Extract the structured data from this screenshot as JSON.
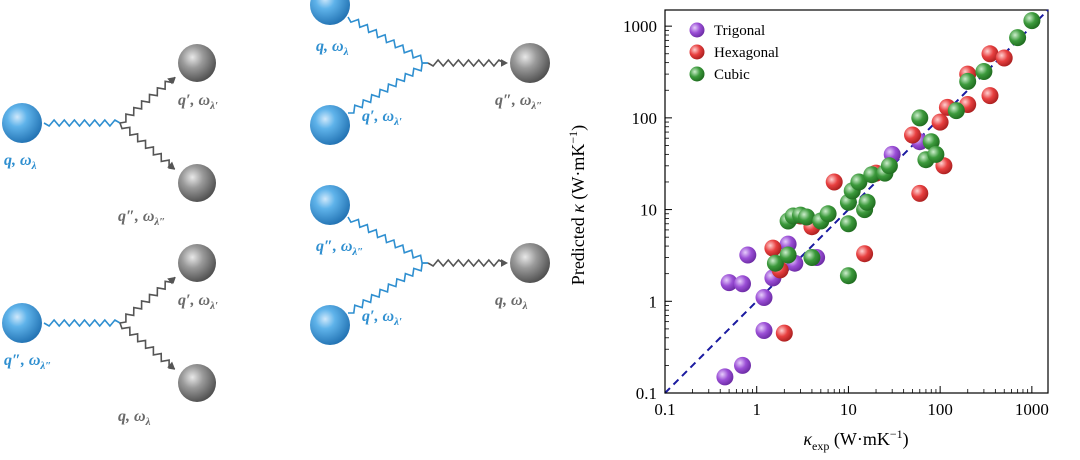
{
  "diagrams": [
    {
      "id": "split-top-left",
      "in": {
        "q": "q",
        "w": "ω",
        "sub": "λ",
        "color": "blue"
      },
      "out1": {
        "q": "q′",
        "w": "ω",
        "sub": "λ′",
        "color": "gray"
      },
      "out2": {
        "q": "q″",
        "w": "ω",
        "sub": "λ″",
        "color": "gray"
      }
    },
    {
      "id": "merge-top-right",
      "in1": {
        "q": "q",
        "w": "ω",
        "sub": "λ",
        "color": "blue"
      },
      "in2": {
        "q": "q′",
        "w": "ω",
        "sub": "λ′",
        "color": "blue"
      },
      "out": {
        "q": "q″",
        "w": "ω",
        "sub": "λ″",
        "color": "gray"
      }
    },
    {
      "id": "split-bottom-left",
      "in": {
        "q": "q″",
        "w": "ω",
        "sub": "λ″",
        "color": "blue"
      },
      "out1": {
        "q": "q′",
        "w": "ω",
        "sub": "λ′",
        "color": "gray"
      },
      "out2": {
        "q": "q",
        "w": "ω",
        "sub": "λ",
        "color": "gray"
      }
    },
    {
      "id": "merge-bottom-right",
      "in1": {
        "q": "q″",
        "w": "ω",
        "sub": "λ″",
        "color": "blue"
      },
      "in2": {
        "q": "q′",
        "w": "ω",
        "sub": "λ′",
        "color": "blue"
      },
      "out": {
        "q": "q",
        "w": "ω",
        "sub": "λ",
        "color": "gray"
      }
    }
  ],
  "chart_data": {
    "type": "scatter",
    "xscale": "log",
    "yscale": "log",
    "xlim": [
      0.1,
      1500
    ],
    "ylim": [
      0.1,
      1500
    ],
    "xticks": [
      "0.1",
      "1",
      "10",
      "100",
      "1000"
    ],
    "yticks": [
      "0.1",
      "1",
      "10",
      "100",
      "1000"
    ],
    "xlabel": {
      "main": "κ",
      "sub": "exp",
      "unit": " (W·mK",
      "sup": "−1",
      "close": ")"
    },
    "ylabel": {
      "main": "Predicted ",
      "kappa": "κ",
      "unit": " (W·mK",
      "sup": "−1",
      "close": ")"
    },
    "legend_position": "top-left",
    "reference_line": "y = x (dashed)",
    "series": [
      {
        "name": "Trigonal",
        "color": "#9b4fd6",
        "points": [
          [
            0.45,
            0.15
          ],
          [
            0.7,
            0.2
          ],
          [
            0.5,
            1.6
          ],
          [
            0.7,
            1.55
          ],
          [
            0.8,
            3.2
          ],
          [
            1.2,
            1.1
          ],
          [
            1.2,
            0.48
          ],
          [
            1.5,
            1.8
          ],
          [
            2.2,
            4.2
          ],
          [
            2.6,
            2.6
          ],
          [
            4.5,
            3.0
          ],
          [
            30,
            40
          ],
          [
            60,
            55
          ]
        ]
      },
      {
        "name": "Hexagonal",
        "color": "#e84040",
        "points": [
          [
            1.5,
            3.8
          ],
          [
            1.8,
            2.2
          ],
          [
            2.0,
            0.45
          ],
          [
            3.0,
            8.5
          ],
          [
            4.0,
            6.5
          ],
          [
            7.0,
            20
          ],
          [
            15,
            3.3
          ],
          [
            20,
            25
          ],
          [
            50,
            65
          ],
          [
            60,
            15
          ],
          [
            100,
            90
          ],
          [
            110,
            30
          ],
          [
            120,
            130
          ],
          [
            200,
            300
          ],
          [
            200,
            140
          ],
          [
            350,
            175
          ],
          [
            350,
            500
          ],
          [
            500,
            450
          ]
        ]
      },
      {
        "name": "Cubic",
        "color": "#3c9a3c",
        "points": [
          [
            1.6,
            2.6
          ],
          [
            2.2,
            3.2
          ],
          [
            2.2,
            7.5
          ],
          [
            2.5,
            8.5
          ],
          [
            3.0,
            8.7
          ],
          [
            3.5,
            8.3
          ],
          [
            4.0,
            3.0
          ],
          [
            5.0,
            7.5
          ],
          [
            6.0,
            9.0
          ],
          [
            10,
            1.9
          ],
          [
            10,
            7.0
          ],
          [
            10,
            12.0
          ],
          [
            11,
            16
          ],
          [
            13,
            20
          ],
          [
            15,
            10
          ],
          [
            16,
            12
          ],
          [
            18,
            24
          ],
          [
            25,
            25
          ],
          [
            28,
            30
          ],
          [
            60,
            100
          ],
          [
            70,
            35
          ],
          [
            80,
            55
          ],
          [
            90,
            40
          ],
          [
            150,
            120
          ],
          [
            200,
            250
          ],
          [
            300,
            320
          ],
          [
            700,
            750
          ],
          [
            1000,
            1150
          ]
        ]
      }
    ]
  }
}
